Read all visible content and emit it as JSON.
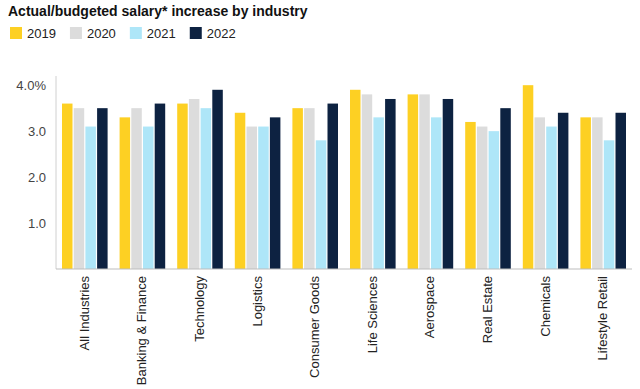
{
  "chart_data": {
    "type": "bar",
    "title": "Actual/budgeted salary* increase by industry",
    "categories": [
      "All Industries",
      "Banking & Finance",
      "Technology",
      "Logistics",
      "Consumer Goods",
      "Life Sciences",
      "Aerospace",
      "Real Estate",
      "Chemicals",
      "Lifestyle Retail"
    ],
    "series": [
      {
        "name": "2019",
        "color": "#fdd023",
        "values": [
          3.6,
          3.3,
          3.6,
          3.4,
          3.5,
          3.9,
          3.8,
          3.2,
          4.0,
          3.3
        ]
      },
      {
        "name": "2020",
        "color": "#dcdcdc",
        "values": [
          3.5,
          3.5,
          3.7,
          3.1,
          3.5,
          3.8,
          3.8,
          3.1,
          3.3,
          3.3
        ]
      },
      {
        "name": "2021",
        "color": "#aee6f8",
        "values": [
          3.1,
          3.1,
          3.5,
          3.1,
          2.8,
          3.3,
          3.3,
          3.0,
          3.1,
          2.8
        ]
      },
      {
        "name": "2022",
        "color": "#0d2241",
        "values": [
          3.5,
          3.6,
          3.9,
          3.3,
          3.6,
          3.7,
          3.7,
          3.5,
          3.4,
          3.4
        ]
      }
    ],
    "ylim": [
      0,
      4.2
    ],
    "yticks": [
      {
        "value": 1,
        "label": "1.0"
      },
      {
        "value": 2,
        "label": "2.0"
      },
      {
        "value": 3,
        "label": "3.0"
      },
      {
        "value": 4,
        "label": "4.0%"
      }
    ],
    "grid": false,
    "legend": "top-left"
  }
}
